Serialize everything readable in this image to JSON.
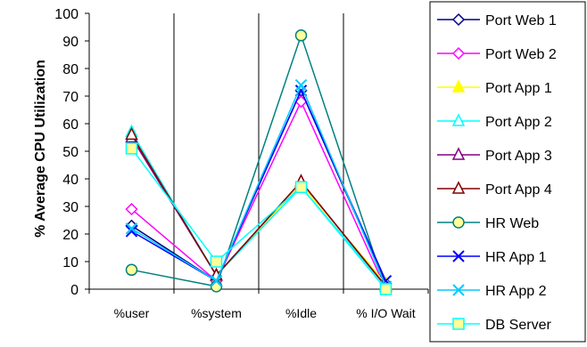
{
  "chart_data": {
    "type": "line",
    "title": "",
    "xlabel": "",
    "ylabel": "% Average CPU Utilization",
    "ylim": [
      0,
      100
    ],
    "yticks": [
      0,
      10,
      20,
      30,
      40,
      50,
      60,
      70,
      80,
      90,
      100
    ],
    "categories": [
      "%user",
      "%system",
      "%Idle",
      "% I/O Wait"
    ],
    "grid": "vertical",
    "legend": "right",
    "series": [
      {
        "name": "Port Web 1",
        "color": "#000080",
        "marker": "diamond",
        "values": [
          23,
          3,
          72,
          2
        ]
      },
      {
        "name": "Port Web 2",
        "color": "#ff00ff",
        "marker": "diamond",
        "values": [
          29,
          3,
          68,
          0
        ]
      },
      {
        "name": "Port App 1",
        "color": "#ffff00",
        "marker": "triangle",
        "values": [
          56,
          5,
          38,
          2
        ]
      },
      {
        "name": "Port App 2",
        "color": "#00ffff",
        "marker": "triangle",
        "values": [
          57,
          5,
          37,
          1
        ]
      },
      {
        "name": "Port App 3",
        "color": "#800080",
        "marker": "triangle",
        "values": [
          55,
          5,
          39,
          1
        ]
      },
      {
        "name": "Port App 4",
        "color": "#800000",
        "marker": "triangle",
        "values": [
          56,
          5,
          39,
          1
        ]
      },
      {
        "name": "HR Web",
        "color": "#008080",
        "marker": "circle",
        "values": [
          7,
          1,
          92,
          0
        ]
      },
      {
        "name": "HR App 1",
        "color": "#0000ff",
        "marker": "x",
        "values": [
          21,
          3,
          72,
          3
        ]
      },
      {
        "name": "HR App 2",
        "color": "#00ccff",
        "marker": "x",
        "values": [
          22,
          3,
          74,
          1
        ]
      },
      {
        "name": "DB Server",
        "color": "#00ffff",
        "marker": "square",
        "values": [
          51,
          10,
          37,
          0
        ]
      }
    ]
  }
}
